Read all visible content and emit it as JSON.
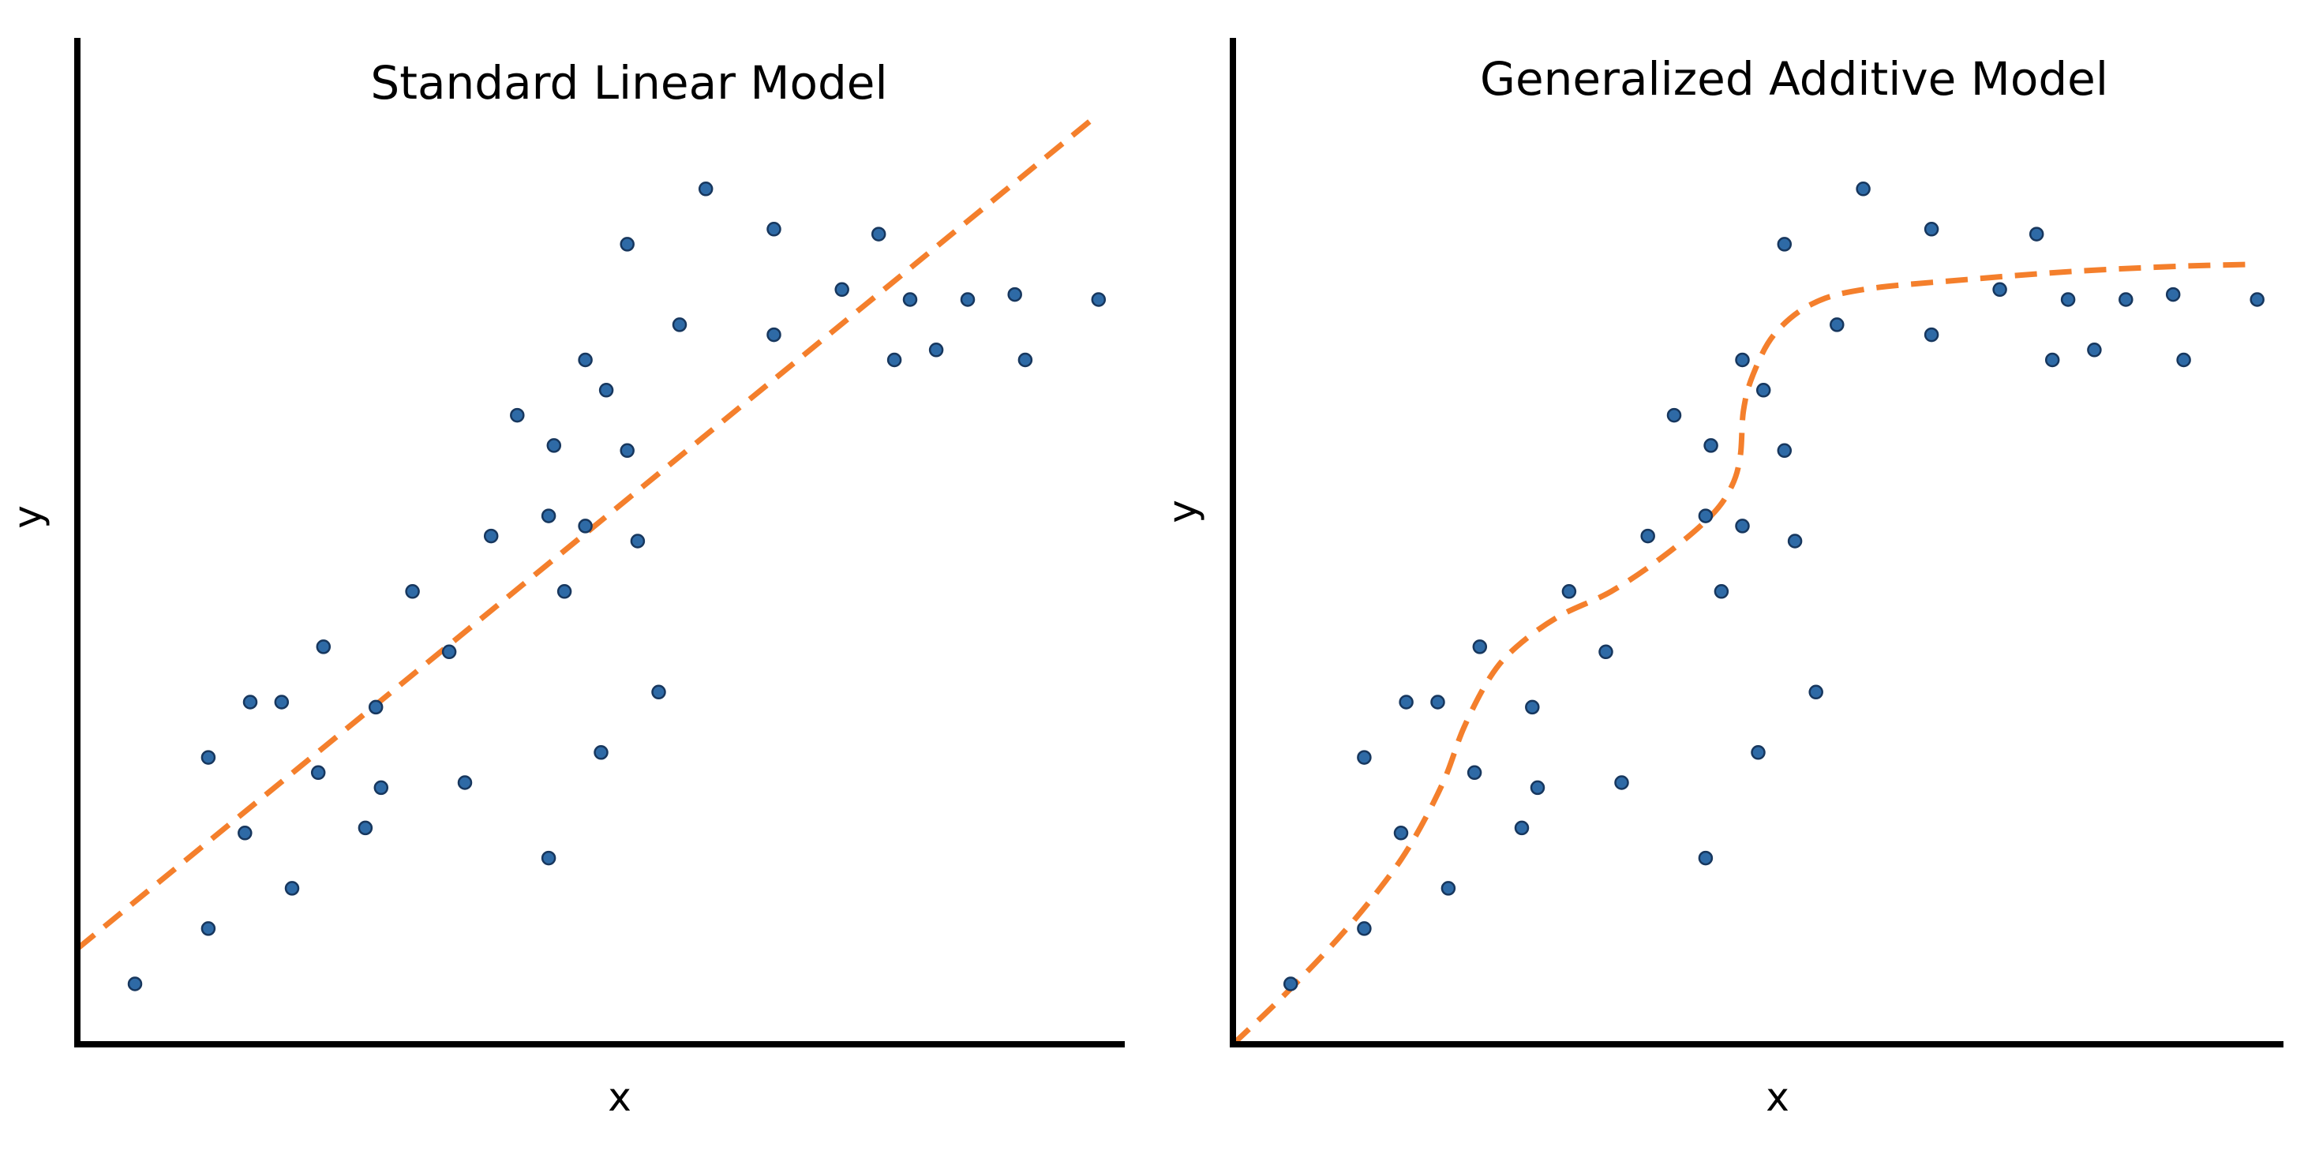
{
  "chart_data": [
    {
      "type": "scatter",
      "title": "Standard Linear Model",
      "xlabel": "x",
      "ylabel": "y",
      "xlim": [
        0,
        100
      ],
      "ylim": [
        0,
        100
      ],
      "grid": false,
      "colors": {
        "points": "#2e6aa6",
        "point_edge": "#17375e",
        "fit": "#f47f2c",
        "axes": "#000000"
      },
      "series": [
        {
          "kind": "points",
          "points": [
            [
              5.5,
              6
            ],
            [
              12.5,
              11.5
            ],
            [
              12.5,
              28.5
            ],
            [
              16,
              21
            ],
            [
              16.5,
              34
            ],
            [
              19.5,
              34
            ],
            [
              20.5,
              15.5
            ],
            [
              23,
              27
            ],
            [
              23.5,
              39.5
            ],
            [
              27.5,
              21.5
            ],
            [
              28.5,
              33.5
            ],
            [
              29,
              25.5
            ],
            [
              32,
              45
            ],
            [
              35.5,
              39
            ],
            [
              37,
              26
            ],
            [
              39.5,
              50.5
            ],
            [
              42,
              62.5
            ],
            [
              45,
              18.5
            ],
            [
              45,
              52.5
            ],
            [
              45.5,
              59.5
            ],
            [
              46.5,
              45
            ],
            [
              48.5,
              51.5
            ],
            [
              48.5,
              68
            ],
            [
              50,
              29
            ],
            [
              50.5,
              65
            ],
            [
              52.5,
              59
            ],
            [
              52.5,
              79.5
            ],
            [
              53.5,
              50
            ],
            [
              55.5,
              35
            ],
            [
              57.5,
              71.5
            ],
            [
              60,
              85
            ],
            [
              66.5,
              81
            ],
            [
              66.5,
              70.5
            ],
            [
              73,
              75
            ],
            [
              76.5,
              80.5
            ],
            [
              78,
              68
            ],
            [
              79.5,
              74
            ],
            [
              82,
              69
            ],
            [
              85,
              74
            ],
            [
              89.5,
              74.5
            ],
            [
              90.5,
              68
            ],
            [
              97.5,
              74
            ]
          ]
        },
        {
          "kind": "linear_fit",
          "points": [
            [
              0,
              9.5
            ],
            [
              97,
              92
            ]
          ]
        }
      ]
    },
    {
      "type": "scatter",
      "title": "Generalized Additive Model",
      "xlabel": "x",
      "ylabel": "y",
      "xlim": [
        0,
        100
      ],
      "ylim": [
        0,
        100
      ],
      "grid": false,
      "colors": {
        "points": "#2e6aa6",
        "point_edge": "#17375e",
        "fit": "#f47f2c",
        "axes": "#000000"
      },
      "series": [
        {
          "kind": "points",
          "points": [
            [
              5.5,
              6
            ],
            [
              12.5,
              11.5
            ],
            [
              12.5,
              28.5
            ],
            [
              16,
              21
            ],
            [
              16.5,
              34
            ],
            [
              19.5,
              34
            ],
            [
              20.5,
              15.5
            ],
            [
              23,
              27
            ],
            [
              23.5,
              39.5
            ],
            [
              27.5,
              21.5
            ],
            [
              28.5,
              33.5
            ],
            [
              29,
              25.5
            ],
            [
              32,
              45
            ],
            [
              35.5,
              39
            ],
            [
              37,
              26
            ],
            [
              39.5,
              50.5
            ],
            [
              42,
              62.5
            ],
            [
              45,
              18.5
            ],
            [
              45,
              52.5
            ],
            [
              45.5,
              59.5
            ],
            [
              46.5,
              45
            ],
            [
              48.5,
              51.5
            ],
            [
              48.5,
              68
            ],
            [
              50,
              29
            ],
            [
              50.5,
              65
            ],
            [
              52.5,
              59
            ],
            [
              52.5,
              79.5
            ],
            [
              53.5,
              50
            ],
            [
              55.5,
              35
            ],
            [
              57.5,
              71.5
            ],
            [
              60,
              85
            ],
            [
              66.5,
              81
            ],
            [
              66.5,
              70.5
            ],
            [
              73,
              75
            ],
            [
              76.5,
              80.5
            ],
            [
              78,
              68
            ],
            [
              79.5,
              74
            ],
            [
              82,
              69
            ],
            [
              85,
              74
            ],
            [
              89.5,
              74.5
            ],
            [
              90.5,
              68
            ],
            [
              97.5,
              74
            ]
          ]
        },
        {
          "kind": "smooth_fit",
          "points": [
            [
              0,
              0
            ],
            [
              5,
              5
            ],
            [
              10,
              10.5
            ],
            [
              14,
              15.5
            ],
            [
              17,
              20
            ],
            [
              20,
              26
            ],
            [
              22,
              31.5
            ],
            [
              24.5,
              36.5
            ],
            [
              27,
              39.5
            ],
            [
              31,
              42.5
            ],
            [
              36,
              45
            ],
            [
              41,
              48.5
            ],
            [
              45.5,
              52.5
            ],
            [
              47.5,
              55.5
            ],
            [
              48.3,
              58.5
            ],
            [
              48.6,
              63
            ],
            [
              49.5,
              66.5
            ],
            [
              51.5,
              70.5
            ],
            [
              55,
              73.5
            ],
            [
              60,
              75
            ],
            [
              70,
              76
            ],
            [
              80,
              76.8
            ],
            [
              90,
              77.3
            ],
            [
              97,
              77.5
            ]
          ]
        }
      ]
    }
  ]
}
